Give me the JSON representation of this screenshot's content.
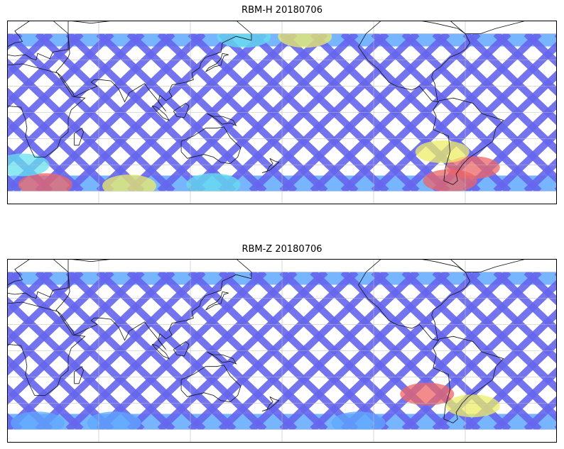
{
  "panels": [
    {
      "title": "RBM-H 20180706",
      "background": "#ffffff",
      "color_stops": {
        "low": "#6666ee",
        "mid_low": "#5fa8ff",
        "mid": "#66e0ee",
        "mid_high": "#eeee66",
        "high": "#ee6666"
      },
      "hotspots": [
        {
          "lon": 195,
          "lat": 58,
          "level": 0.75
        },
        {
          "lon": 155,
          "lat": 58,
          "level": 0.55
        },
        {
          "lon": 290,
          "lat": -52,
          "level": 0.95
        },
        {
          "lon": 305,
          "lat": -42,
          "level": 0.9
        },
        {
          "lon": 285,
          "lat": -30,
          "level": 0.7
        },
        {
          "lon": 25,
          "lat": -55,
          "level": 0.8
        },
        {
          "lon": 80,
          "lat": -56,
          "level": 0.65
        },
        {
          "lon": 135,
          "lat": -55,
          "level": 0.55
        },
        {
          "lon": 10,
          "lat": -40,
          "level": 0.45
        }
      ]
    },
    {
      "title": "RBM-Z 20180706",
      "background": "#ffffff",
      "color_stops": {
        "low": "#6666ee",
        "mid_low": "#5fa8ff",
        "mid": "#66e0ee",
        "mid_high": "#eeee66",
        "high": "#ee6666"
      },
      "hotspots": [
        {
          "lon": 275,
          "lat": -33,
          "level": 0.85
        },
        {
          "lon": 305,
          "lat": -42,
          "level": 0.7
        },
        {
          "lon": 230,
          "lat": -55,
          "level": 0.4
        },
        {
          "lon": 70,
          "lat": -55,
          "level": 0.35
        },
        {
          "lon": 20,
          "lat": -55,
          "level": 0.4
        }
      ]
    }
  ],
  "map": {
    "lon_range": [
      0,
      360
    ],
    "lat_range": [
      -70,
      70
    ],
    "coverage_lat": [
      -60,
      60
    ],
    "gridlines_lon": [
      0,
      60,
      120,
      180,
      240,
      300,
      360
    ],
    "gridlines_lat": [
      -60,
      -40,
      -20,
      0,
      20,
      40,
      60
    ]
  }
}
